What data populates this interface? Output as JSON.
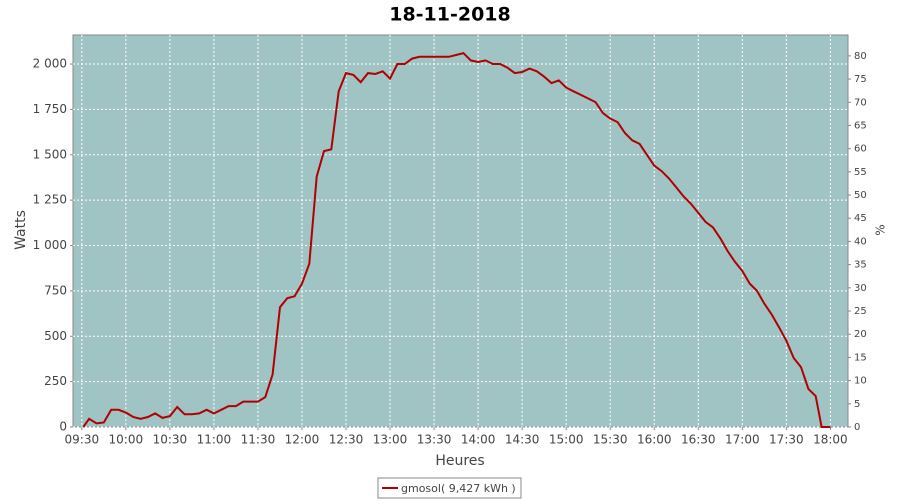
{
  "chart_data": {
    "type": "line",
    "title": "18-11-2018",
    "x_label": "Heures",
    "y_label": "Watts",
    "y2_label": "%",
    "x": [
      "09:31",
      "09:35",
      "09:40",
      "09:45",
      "09:50",
      "09:55",
      "10:00",
      "10:05",
      "10:10",
      "10:15",
      "10:20",
      "10:25",
      "10:30",
      "10:35",
      "10:40",
      "10:45",
      "10:50",
      "10:55",
      "11:00",
      "11:05",
      "11:10",
      "11:15",
      "11:20",
      "11:25",
      "11:30",
      "11:35",
      "11:40",
      "11:45",
      "11:50",
      "11:55",
      "12:00",
      "12:05",
      "12:10",
      "12:15",
      "12:20",
      "12:25",
      "12:30",
      "12:35",
      "12:40",
      "12:45",
      "12:50",
      "12:55",
      "13:00",
      "13:05",
      "13:10",
      "13:15",
      "13:20",
      "13:25",
      "13:30",
      "13:35",
      "13:40",
      "13:45",
      "13:50",
      "13:55",
      "14:00",
      "14:05",
      "14:10",
      "14:15",
      "14:20",
      "14:25",
      "14:30",
      "14:35",
      "14:40",
      "14:45",
      "14:50",
      "14:55",
      "15:00",
      "15:05",
      "15:10",
      "15:15",
      "15:20",
      "15:25",
      "15:30",
      "15:35",
      "15:40",
      "15:45",
      "15:50",
      "15:55",
      "16:00",
      "16:05",
      "16:10",
      "16:15",
      "16:20",
      "16:25",
      "16:30",
      "16:35",
      "16:40",
      "16:45",
      "16:50",
      "16:55",
      "17:00",
      "17:05",
      "17:10",
      "17:15",
      "17:20",
      "17:25",
      "17:30",
      "17:35",
      "17:40",
      "17:45",
      "17:50",
      "17:54",
      "18:00"
    ],
    "series": [
      {
        "name": "gmosol( 9,427 kWh )",
        "color": "#b00000",
        "values": [
          0,
          45,
          20,
          25,
          95,
          95,
          80,
          55,
          45,
          55,
          75,
          50,
          60,
          110,
          70,
          70,
          75,
          95,
          75,
          95,
          115,
          115,
          140,
          140,
          140,
          165,
          290,
          660,
          710,
          720,
          790,
          900,
          1380,
          1520,
          1530,
          1850,
          1950,
          1940,
          1900,
          1950,
          1945,
          1960,
          1920,
          2000,
          2000,
          2030,
          2040,
          2040,
          2040,
          2040,
          2040,
          2050,
          2060,
          2020,
          2011,
          2020,
          2000,
          2000,
          1980,
          1950,
          1956,
          1975,
          1960,
          1930,
          1895,
          1910,
          1870,
          1850,
          1830,
          1810,
          1790,
          1730,
          1700,
          1680,
          1620,
          1580,
          1560,
          1500,
          1440,
          1410,
          1370,
          1320,
          1270,
          1230,
          1180,
          1130,
          1100,
          1040,
          970,
          910,
          860,
          790,
          750,
          680,
          620,
          550,
          475,
          380,
          330,
          210,
          170,
          0,
          0
        ]
      }
    ],
    "xlim": [
      "09:24",
      "18:12"
    ],
    "xticks": [
      "09:30",
      "10:00",
      "10:30",
      "11:00",
      "11:30",
      "12:00",
      "12:30",
      "13:00",
      "13:30",
      "14:00",
      "14:30",
      "15:00",
      "15:30",
      "16:00",
      "16:30",
      "17:00",
      "17:30",
      "18:00"
    ],
    "ylim": [
      0,
      2160
    ],
    "yticks": [
      0,
      250,
      500,
      750,
      {
        "value": 1000,
        "label": "1 000"
      },
      {
        "value": 1250,
        "label": "1 250"
      },
      {
        "value": 1500,
        "label": "1 500"
      },
      {
        "value": 1750,
        "label": "1 750"
      },
      {
        "value": 2000,
        "label": "2 000"
      }
    ],
    "y2lim": [
      0,
      84.5
    ],
    "y2ticks": [
      0,
      5,
      10,
      15,
      20,
      25,
      30,
      35,
      40,
      45,
      50,
      55,
      60,
      65,
      70,
      75,
      80
    ],
    "grid": true,
    "plot_background": "#a0c4c4",
    "legend": "bottom"
  }
}
